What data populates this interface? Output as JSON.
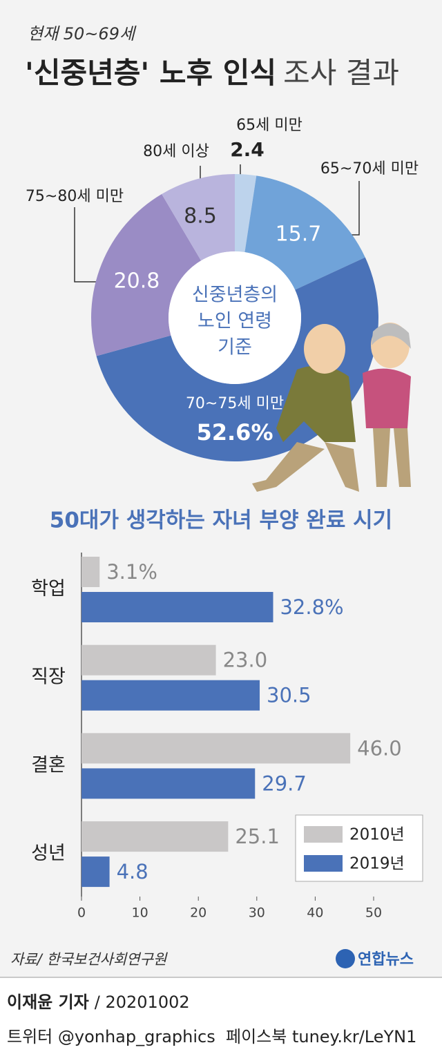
{
  "header": {
    "subtitle": "현재 50~69세",
    "title_bold": "'신중년층' 노후 인식",
    "title_rest": "조사 결과"
  },
  "chart_data": [
    {
      "type": "donut",
      "center_label": [
        "신중년층의",
        "노인 연령",
        "기준"
      ],
      "categories": [
        "65세 미만",
        "65~70세 미만",
        "70~75세 미만",
        "75~80세 미만",
        "80세 이상"
      ],
      "values": [
        2.4,
        15.7,
        52.6,
        20.8,
        8.5
      ],
      "value_labels": [
        "2.4",
        "15.7",
        "52.6%",
        "20.8",
        "8.5"
      ],
      "colors": [
        "#bdd3ec",
        "#70a3d9",
        "#4a72b8",
        "#9a8cc5",
        "#b9b4dd"
      ]
    },
    {
      "type": "hbar",
      "title": "50대가 생각하는 자녀 부양 완료 시기",
      "categories": [
        "학업",
        "직장",
        "결혼",
        "성년"
      ],
      "series": [
        {
          "name": "2010년",
          "color": "#c9c7c7",
          "values": [
            3.1,
            23.0,
            46.0,
            25.1
          ],
          "value_labels": [
            "3.1%",
            "23.0",
            "46.0",
            "25.1"
          ]
        },
        {
          "name": "2019년",
          "color": "#4a72b8",
          "values": [
            32.8,
            30.5,
            29.7,
            4.8
          ],
          "value_labels": [
            "32.8%",
            "30.5",
            "29.7",
            "4.8"
          ]
        }
      ],
      "xlim": [
        0,
        50
      ],
      "xticks": [
        0,
        10,
        20,
        30,
        40,
        50
      ],
      "legend": "bottom-right"
    }
  ],
  "footer": {
    "source": "자료/ 한국보건사회연구원",
    "logo": "연합뉴스",
    "reporter": "이재윤 기자",
    "date": "/ 20201002",
    "social": "트위터 @yonhap_graphics  페이스북 tuney.kr/LeYN1"
  }
}
